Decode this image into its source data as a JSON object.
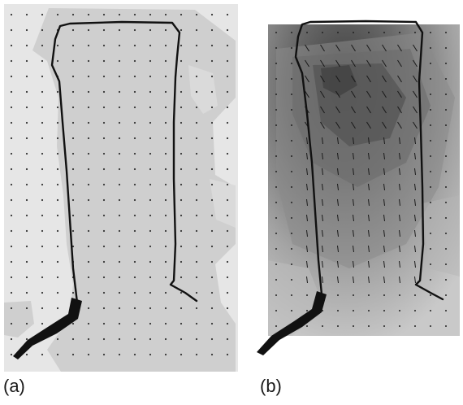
{
  "figure": {
    "panels": [
      {
        "id": "a",
        "label": "(a)",
        "field_type": "scalar-contour-dots"
      },
      {
        "id": "b",
        "label": "(b)",
        "field_type": "scalar-contour-vectors"
      }
    ],
    "colors": {
      "light_background": "#e6e6e6",
      "light_region": "#cfcfcf",
      "contour_lightest": "#c9c9c9",
      "contour_darkest": "#3c3c3c",
      "outline": "#111111"
    }
  }
}
